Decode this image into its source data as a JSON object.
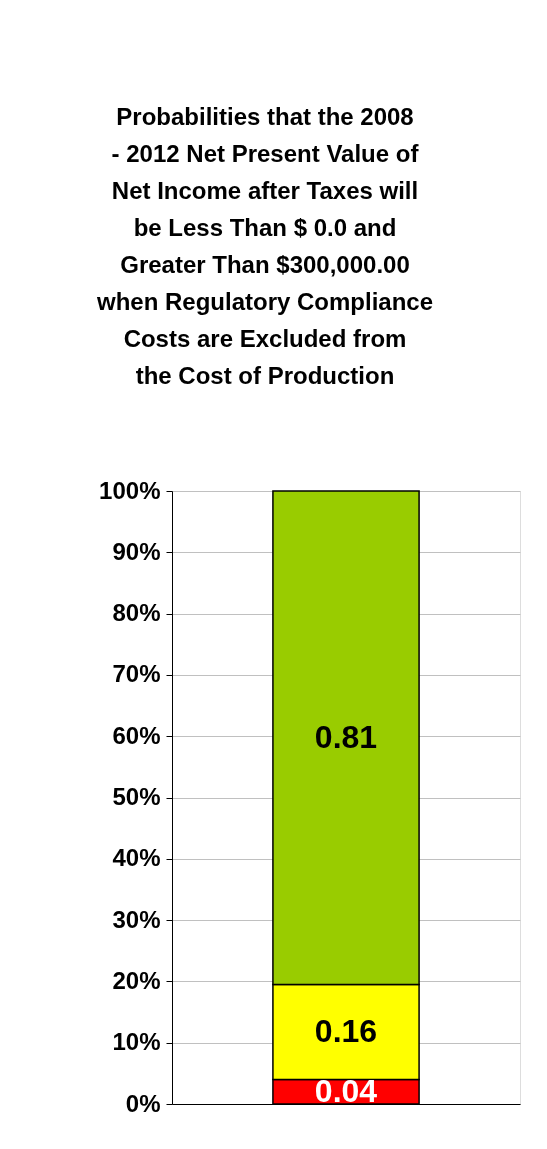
{
  "chart_data": {
    "type": "bar",
    "stacked": true,
    "title": "Probabilities that the 2008 - 2012  Net Present Value of Net Income after Taxes will be Less Than $ 0.0 and Greater Than $300,000.00 when Regulatory Compliance Costs are Excluded  from  the Cost of Production",
    "categories": [
      null
    ],
    "series": [
      {
        "color": "#ff0000",
        "values": [
          0.04
        ],
        "value_labels": [
          "0.04"
        ]
      },
      {
        "color": "#ffff00",
        "values": [
          0.155
        ],
        "value_labels": [
          "0.16"
        ]
      },
      {
        "color": "#99cc00",
        "values": [
          0.805
        ],
        "value_labels": [
          "0.81"
        ]
      }
    ],
    "ylim": [
      0,
      1
    ],
    "yticks": [
      {
        "value": 0,
        "label": "0%"
      },
      {
        "value": 0.1,
        "label": "10%"
      },
      {
        "value": 0.2,
        "label": "20%"
      },
      {
        "value": 0.3,
        "label": "30%"
      },
      {
        "value": 0.4,
        "label": "40%"
      },
      {
        "value": 0.5,
        "label": "50%"
      },
      {
        "value": 0.6,
        "label": "60%"
      },
      {
        "value": 0.7,
        "label": "70%"
      },
      {
        "value": 0.8,
        "label": "80%"
      },
      {
        "value": 0.9,
        "label": "90%"
      },
      {
        "value": 1,
        "label": "100%"
      }
    ],
    "grid": "y"
  }
}
